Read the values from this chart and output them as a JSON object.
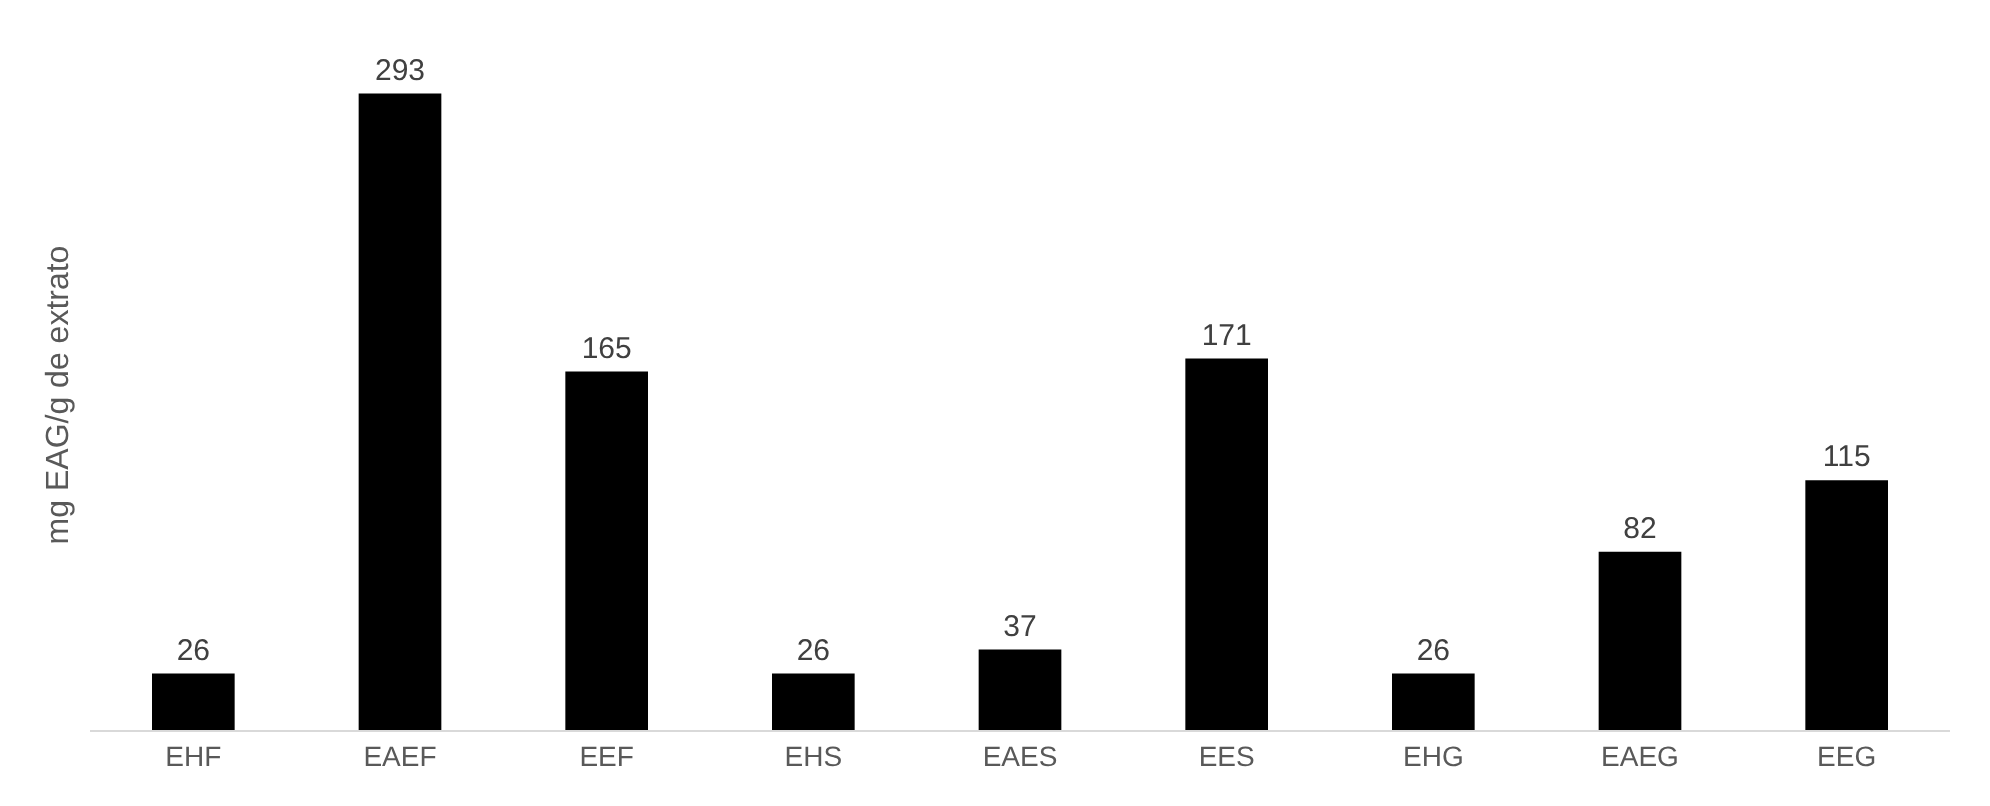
{
  "chart_data": {
    "type": "bar",
    "ylabel": "mg EAG/g de extrato",
    "categories": [
      "EHF",
      "EAEF",
      "EEF",
      "EHS",
      "EAES",
      "EES",
      "EHG",
      "EAEG",
      "EEG"
    ],
    "values": [
      26,
      293,
      165,
      26,
      37,
      171,
      26,
      82,
      115
    ],
    "color": "#000000",
    "data_labels": true,
    "grid": false,
    "legend": false
  }
}
